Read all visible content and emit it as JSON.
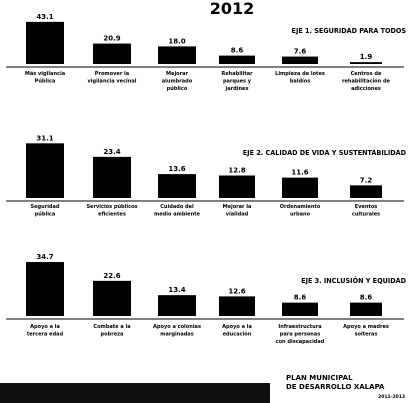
{
  "title": "2012",
  "chart_data": [
    {
      "type": "bar",
      "title": "EJE 1. SEGURIDAD PARA TODOS",
      "categories": [
        [
          "Más vigilancia",
          "Pública"
        ],
        [
          "Promover la",
          "vigilancia vecinal"
        ],
        [
          "Mejorar",
          "alumbrado",
          "público"
        ],
        [
          "Rehabilitar",
          "parques y",
          "jardines"
        ],
        [
          "Limpieza de lotes",
          "baldíos"
        ],
        [
          "Centros de",
          "rehabilitación de",
          "adicciones"
        ]
      ],
      "values": [
        43.1,
        20.9,
        18.0,
        8.6,
        7.6,
        1.9
      ],
      "ylim": [
        0,
        45
      ]
    },
    {
      "type": "bar",
      "title": "EJE 2. CALIDAD DE VIDA Y SUSTENTABILIDAD",
      "categories": [
        [
          "Seguridad",
          "pública"
        ],
        [
          "Servicios públicos",
          "eficientes"
        ],
        [
          "Cuidado del",
          "medio ambiente"
        ],
        [
          "Mejorar la",
          "vialidad"
        ],
        [
          "Ordenamiento",
          "urbano"
        ],
        [
          "Eventos",
          "culturales"
        ]
      ],
      "values": [
        31.1,
        23.4,
        13.6,
        12.8,
        11.6,
        7.2
      ],
      "ylim": [
        0,
        33
      ]
    },
    {
      "type": "bar",
      "title": "EJE 3. INCLUSIÓN Y EQUIDAD",
      "categories": [
        [
          "Apoyo a la",
          "tercera edad"
        ],
        [
          "Combate a la",
          "pobreza"
        ],
        [
          "Apoyo a colonias",
          "marginadas"
        ],
        [
          "Apoyo a la",
          "educación"
        ],
        [
          "Infraestructura",
          "para personas",
          "con discapacidad"
        ],
        [
          "Apoyo a madres",
          "solteras"
        ]
      ],
      "values": [
        34.7,
        22.6,
        13.4,
        12.6,
        8.6,
        8.6
      ],
      "ylim": [
        0,
        36
      ]
    }
  ],
  "footer": {
    "line1": "PLAN MUNICIPAL",
    "line2": "DE DESARROLLO XALAPA",
    "line3": "2011-2013"
  }
}
